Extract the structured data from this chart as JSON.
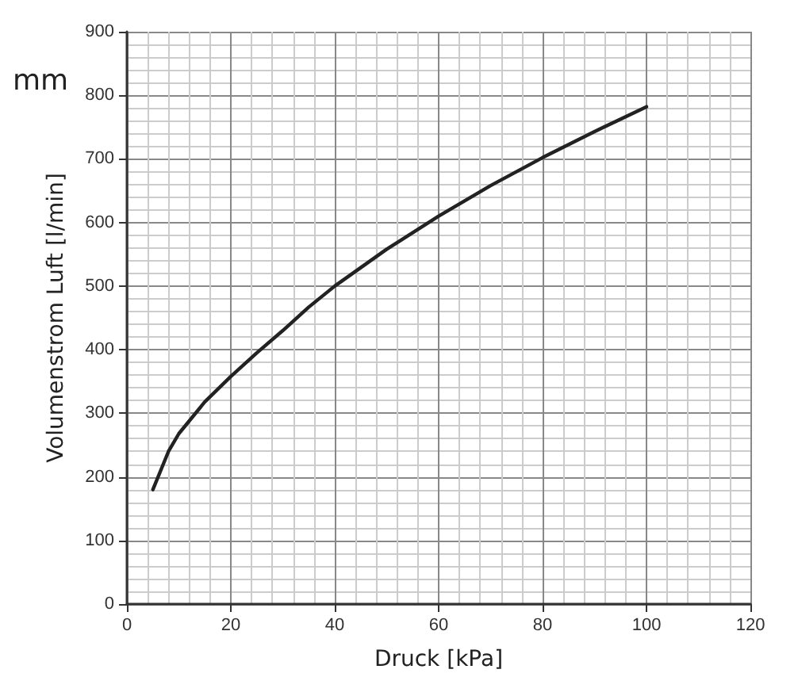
{
  "chart_data": {
    "type": "line",
    "xlabel": "Druck [kPa]",
    "ylabel": "Volumenstrom Luft [l/min]",
    "annotations": [
      "mm"
    ],
    "x": [
      5,
      8,
      10,
      15,
      20,
      25,
      30,
      35,
      40,
      50,
      60,
      70,
      80,
      90,
      100
    ],
    "series": [
      {
        "color": "#222222",
        "values": [
          180,
          240,
          268,
          318,
          358,
          395,
          430,
          467,
          500,
          558,
          610,
          658,
          702,
          743,
          782
        ]
      }
    ],
    "xlim": [
      0,
      120
    ],
    "xticks": [
      0,
      20,
      40,
      60,
      80,
      100,
      120
    ],
    "ylim": [
      0,
      900
    ],
    "yticks": [
      0,
      100,
      200,
      300,
      400,
      500,
      600,
      700,
      800,
      900
    ],
    "grid": true,
    "marker": "none",
    "line_style": "solid"
  }
}
